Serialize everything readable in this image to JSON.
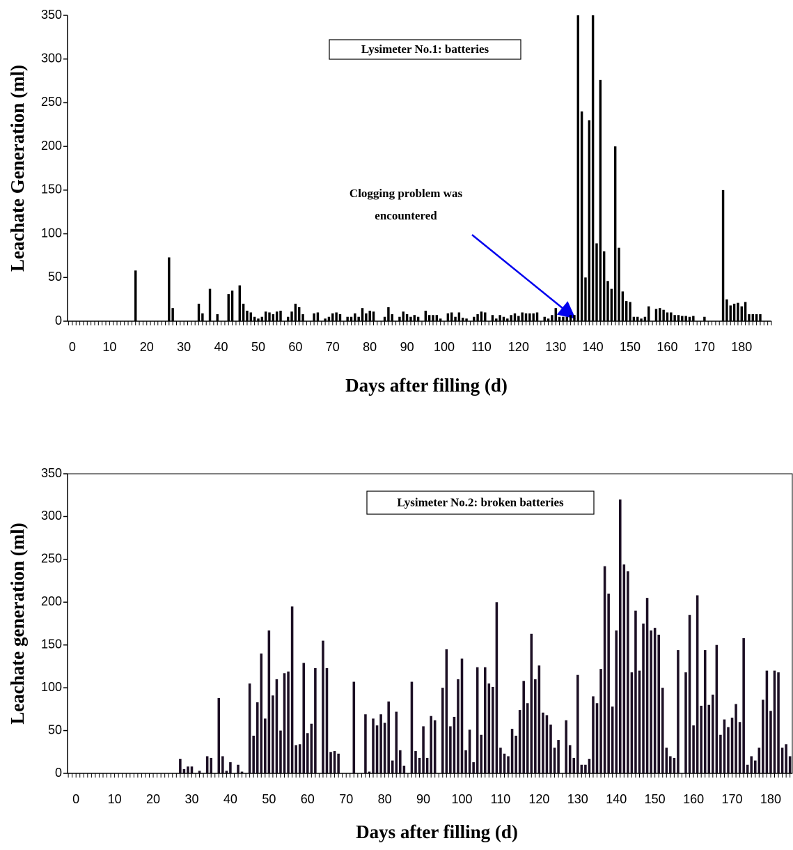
{
  "chart_data": [
    {
      "type": "bar",
      "color": "#000000",
      "box_label": "Lysimeter No.1: batteries",
      "annotation_lines": [
        "Clogging problem was",
        "encountered"
      ],
      "xlabel": "Days after filling (d)",
      "ylabel": "Leachate Generation (ml)",
      "xlim": [
        -1.3,
        188
      ],
      "xticks": [
        0,
        10,
        20,
        30,
        40,
        50,
        60,
        70,
        80,
        90,
        100,
        110,
        120,
        130,
        140,
        150,
        160,
        170,
        180
      ],
      "ylim": [
        0,
        350
      ],
      "yticks": [
        0,
        50,
        100,
        150,
        200,
        250,
        300,
        350
      ],
      "frame": false,
      "x": [
        17,
        26,
        27,
        34,
        35,
        37,
        39,
        42,
        43,
        45,
        46,
        47,
        48,
        49,
        50,
        51,
        52,
        53,
        54,
        55,
        56,
        58,
        59,
        60,
        61,
        62,
        65,
        66,
        68,
        69,
        70,
        71,
        72,
        74,
        75,
        76,
        77,
        78,
        79,
        80,
        81,
        84,
        85,
        86,
        88,
        89,
        90,
        91,
        92,
        93,
        95,
        96,
        97,
        98,
        99,
        101,
        102,
        103,
        104,
        105,
        106,
        108,
        109,
        110,
        111,
        113,
        114,
        115,
        116,
        117,
        118,
        119,
        120,
        121,
        122,
        123,
        124,
        125,
        127,
        128,
        129,
        130,
        131,
        132,
        133,
        134,
        135,
        136,
        137,
        138,
        139,
        140,
        141,
        142,
        143,
        144,
        145,
        146,
        147,
        148,
        149,
        150,
        151,
        152,
        153,
        154,
        155,
        157,
        158,
        159,
        160,
        161,
        162,
        163,
        164,
        165,
        166,
        167,
        170,
        175,
        176,
        177,
        178,
        179,
        180,
        181,
        182,
        183,
        184,
        185
      ],
      "values": [
        58,
        73,
        15,
        20,
        9,
        37,
        8,
        31,
        35,
        41,
        20,
        12,
        10,
        5,
        3,
        5,
        11,
        10,
        8,
        11,
        12,
        5,
        11,
        20,
        16,
        8,
        9,
        10,
        3,
        5,
        9,
        10,
        8,
        5,
        5,
        9,
        5,
        15,
        9,
        12,
        11,
        5,
        16,
        8,
        5,
        11,
        8,
        5,
        7,
        5,
        12,
        7,
        7,
        7,
        3,
        9,
        10,
        5,
        10,
        4,
        3,
        5,
        8,
        11,
        10,
        7,
        3,
        7,
        5,
        3,
        7,
        9,
        6,
        10,
        9,
        9,
        9,
        10,
        5,
        3,
        7,
        15,
        5,
        5,
        5,
        7,
        7,
        350,
        240,
        50,
        230,
        350,
        89,
        276,
        80,
        46,
        37,
        200,
        84,
        34,
        23,
        22,
        5,
        5,
        3,
        5,
        17,
        14,
        15,
        13,
        10,
        10,
        7,
        7,
        6,
        6,
        5,
        6,
        5,
        150,
        25,
        18,
        20,
        21,
        17,
        22,
        8,
        8,
        8,
        8
      ]
    },
    {
      "type": "bar",
      "color": "#1c0f24",
      "box_label": "Lysimeter No.2: broken batteries",
      "xlabel": "Days after filling (d)",
      "ylabel": "Leachate generation (ml)",
      "xlim": [
        -2.2,
        185.6
      ],
      "xticks": [
        0,
        10,
        20,
        30,
        40,
        50,
        60,
        70,
        80,
        90,
        100,
        110,
        120,
        130,
        140,
        150,
        160,
        170,
        180
      ],
      "ylim": [
        0,
        350
      ],
      "yticks": [
        0,
        50,
        100,
        150,
        200,
        250,
        300,
        350
      ],
      "frame": true,
      "x": [
        27,
        28,
        29,
        30,
        32,
        34,
        35,
        37,
        38,
        39,
        40,
        42,
        43,
        45,
        46,
        47,
        48,
        49,
        50,
        51,
        52,
        53,
        54,
        55,
        56,
        57,
        58,
        59,
        60,
        61,
        62,
        64,
        65,
        66,
        67,
        68,
        72,
        75,
        76,
        77,
        78,
        79,
        80,
        81,
        82,
        83,
        84,
        85,
        87,
        88,
        89,
        90,
        91,
        92,
        93,
        95,
        96,
        97,
        98,
        99,
        100,
        101,
        102,
        103,
        104,
        105,
        106,
        107,
        108,
        109,
        110,
        111,
        112,
        113,
        114,
        115,
        116,
        117,
        118,
        119,
        120,
        121,
        122,
        123,
        124,
        125,
        127,
        128,
        129,
        130,
        131,
        132,
        133,
        134,
        135,
        136,
        137,
        138,
        139,
        140,
        141,
        142,
        143,
        144,
        145,
        146,
        147,
        148,
        149,
        150,
        151,
        152,
        153,
        154,
        155,
        156,
        158,
        159,
        160,
        161,
        162,
        163,
        164,
        165,
        166,
        167,
        168,
        169,
        170,
        171,
        172,
        173,
        174,
        175,
        176,
        177,
        178,
        179,
        180,
        181,
        182,
        183,
        184,
        185
      ],
      "values": [
        17,
        5,
        8,
        8,
        3,
        20,
        18,
        88,
        20,
        3,
        13,
        10,
        2,
        105,
        44,
        83,
        140,
        64,
        167,
        91,
        110,
        50,
        117,
        119,
        195,
        33,
        34,
        129,
        47,
        58,
        123,
        155,
        123,
        25,
        26,
        23,
        107,
        69,
        2,
        64,
        56,
        69,
        59,
        84,
        15,
        72,
        27,
        9,
        107,
        26,
        18,
        55,
        18,
        67,
        62,
        100,
        145,
        55,
        66,
        110,
        134,
        27,
        51,
        13,
        124,
        45,
        124,
        105,
        101,
        200,
        30,
        23,
        20,
        52,
        44,
        74,
        108,
        82,
        163,
        110,
        126,
        71,
        68,
        57,
        30,
        39,
        62,
        33,
        18,
        115,
        10,
        10,
        17,
        90,
        82,
        122,
        242,
        210,
        78,
        167,
        320,
        244,
        236,
        118,
        190,
        120,
        175,
        205,
        167,
        170,
        162,
        100,
        30,
        20,
        18,
        144,
        118,
        185,
        56,
        208,
        79,
        144,
        80,
        92,
        150,
        45,
        63,
        54,
        65,
        81,
        60,
        158,
        10,
        20,
        15,
        30,
        86,
        120,
        73,
        120,
        118,
        30,
        34,
        20
      ]
    }
  ]
}
